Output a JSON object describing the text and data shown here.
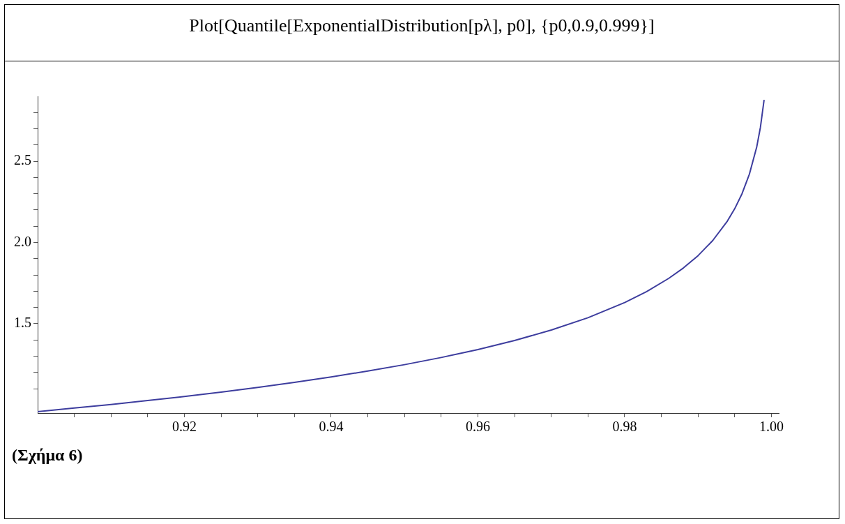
{
  "chart_data": {
    "type": "line",
    "title": "Plot[Quantile[ExponentialDistribution[pλ], p0], {p0,0.9,0.999}]",
    "annotations": [
      "(Σχήμα 6)"
    ],
    "x": [
      0.9,
      0.905,
      0.91,
      0.915,
      0.92,
      0.925,
      0.93,
      0.935,
      0.94,
      0.945,
      0.95,
      0.955,
      0.96,
      0.965,
      0.97,
      0.975,
      0.98,
      0.983,
      0.986,
      0.988,
      0.99,
      0.992,
      0.994,
      0.995,
      0.996,
      0.997,
      0.998,
      0.9985,
      0.999
    ],
    "series": [
      {
        "color": "#3d3d9e",
        "values": [
          0.959,
          0.981,
          1.003,
          1.027,
          1.052,
          1.079,
          1.108,
          1.139,
          1.172,
          1.209,
          1.248,
          1.292,
          1.341,
          1.397,
          1.461,
          1.537,
          1.63,
          1.698,
          1.779,
          1.843,
          1.919,
          2.012,
          2.132,
          2.208,
          2.301,
          2.421,
          2.589,
          2.709,
          2.878
        ]
      }
    ],
    "xlim": [
      0.9,
      1.001
    ],
    "xticks": [
      {
        "value": 0.905,
        "label": null
      },
      {
        "value": 0.91,
        "label": null
      },
      {
        "value": 0.915,
        "label": null
      },
      {
        "value": 0.92,
        "label": "0.92"
      },
      {
        "value": 0.925,
        "label": null
      },
      {
        "value": 0.93,
        "label": null
      },
      {
        "value": 0.935,
        "label": null
      },
      {
        "value": 0.94,
        "label": "0.94"
      },
      {
        "value": 0.945,
        "label": null
      },
      {
        "value": 0.95,
        "label": null
      },
      {
        "value": 0.955,
        "label": null
      },
      {
        "value": 0.96,
        "label": "0.96"
      },
      {
        "value": 0.965,
        "label": null
      },
      {
        "value": 0.97,
        "label": null
      },
      {
        "value": 0.975,
        "label": null
      },
      {
        "value": 0.98,
        "label": "0.98"
      },
      {
        "value": 0.985,
        "label": null
      },
      {
        "value": 0.99,
        "label": null
      },
      {
        "value": 0.995,
        "label": null
      },
      {
        "value": 1.0,
        "label": "1.00"
      }
    ],
    "ylim": [
      0.95,
      2.9
    ],
    "yticks": [
      {
        "value": 1.1,
        "label": null
      },
      {
        "value": 1.2,
        "label": null
      },
      {
        "value": 1.3,
        "label": null
      },
      {
        "value": 1.4,
        "label": null
      },
      1.5,
      {
        "value": 1.6,
        "label": null
      },
      {
        "value": 1.7,
        "label": null
      },
      {
        "value": 1.8,
        "label": null
      },
      {
        "value": 1.9,
        "label": null
      },
      {
        "value": 2.0,
        "label": "2.0"
      },
      {
        "value": 2.1,
        "label": null
      },
      {
        "value": 2.2,
        "label": null
      },
      {
        "value": 2.3,
        "label": null
      },
      {
        "value": 2.4,
        "label": null
      },
      2.5,
      {
        "value": 2.6,
        "label": null
      },
      {
        "value": 2.7,
        "label": null
      },
      {
        "value": 2.8,
        "label": null
      }
    ],
    "grid": false,
    "legend": false,
    "marker": "none",
    "line_style": "solid"
  }
}
